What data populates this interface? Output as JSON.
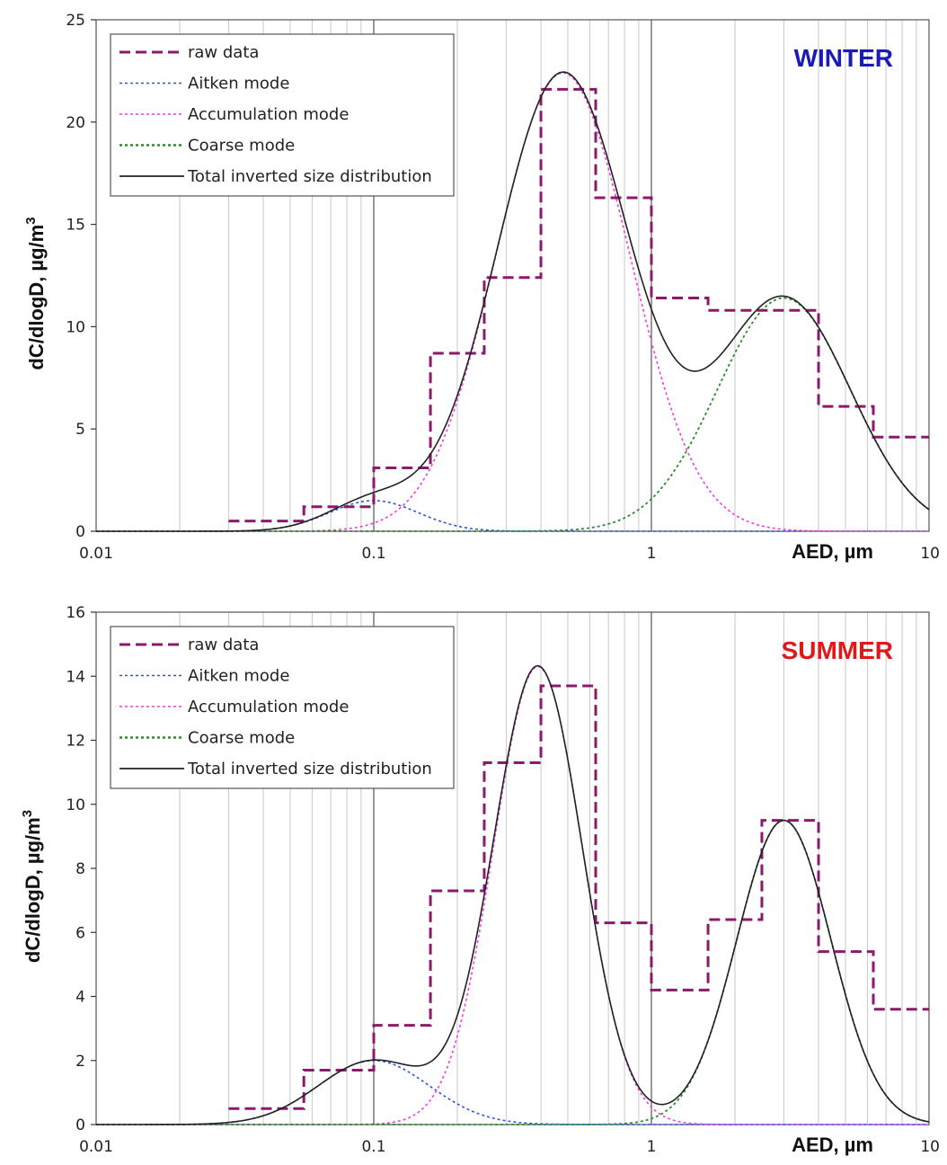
{
  "chart_data": [
    {
      "type": "line",
      "title": "",
      "season_label": "WINTER",
      "season_color": "#1a1ab8",
      "xlabel": "AED, µm",
      "ylabel": "dC/dlogD, µg/m",
      "ylabel_sup": "3",
      "x_scale": "log",
      "xlim": [
        0.01,
        10
      ],
      "ylim": [
        0,
        25
      ],
      "xticks": [
        0.01,
        0.1,
        1,
        10
      ],
      "xtick_labels": [
        "0.01",
        "0.1",
        "1",
        "10"
      ],
      "yticks": [
        0,
        5,
        10,
        15,
        20,
        25
      ],
      "ytick_labels": [
        "0",
        "5",
        "10",
        "15",
        "20",
        "25"
      ],
      "grid": "vertical log gridlines",
      "legend_position": "top-left",
      "legend": [
        "raw data",
        "Aitken mode",
        "Accumulation mode",
        "Coarse mode",
        "Total inverted size distribution"
      ],
      "raw_data": {
        "edges": [
          0.03,
          0.056,
          0.1,
          0.16,
          0.25,
          0.4,
          0.63,
          1.0,
          1.6,
          2.5,
          4.0,
          6.3,
          10
        ],
        "values": [
          0.5,
          1.2,
          3.1,
          8.7,
          12.4,
          21.6,
          16.3,
          11.4,
          10.8,
          10.8,
          6.1,
          4.6
        ]
      },
      "modes": {
        "aitken": {
          "amp": 1.5,
          "center": 0.1,
          "sigma_log10": 0.16
        },
        "accumulation": {
          "amp": 22.4,
          "center": 0.48,
          "sigma_log10": 0.24
        },
        "coarse": {
          "amp": 11.4,
          "center": 3.0,
          "sigma_log10": 0.24
        }
      },
      "series_colors": {
        "raw data": "#8b1a6b",
        "Aitken mode": "#2a55e0",
        "Accumulation mode": "#ee3fe0",
        "Coarse mode": "#2e8b2e",
        "Total inverted size distribution": "#222222"
      }
    },
    {
      "type": "line",
      "title": "",
      "season_label": "SUMMER",
      "season_color": "#e01818",
      "xlabel": "AED, µm",
      "ylabel": "dC/dlogD, µg/m",
      "ylabel_sup": "3",
      "x_scale": "log",
      "xlim": [
        0.01,
        10
      ],
      "ylim": [
        0,
        16
      ],
      "xticks": [
        0.01,
        0.1,
        1,
        10
      ],
      "xtick_labels": [
        "0.01",
        "0.1",
        "1",
        "10"
      ],
      "yticks": [
        0,
        2,
        4,
        6,
        8,
        10,
        12,
        14,
        16
      ],
      "ytick_labels": [
        "0",
        "2",
        "4",
        "6",
        "8",
        "10",
        "12",
        "14",
        "16"
      ],
      "grid": "vertical log gridlines",
      "legend_position": "top-left",
      "legend": [
        "raw data",
        "Aitken mode",
        "Accumulation mode",
        "Coarse mode",
        "Total inverted size distribution"
      ],
      "raw_data": {
        "edges": [
          0.03,
          0.056,
          0.1,
          0.16,
          0.25,
          0.4,
          0.63,
          1.0,
          1.6,
          2.5,
          4.0,
          6.3,
          10
        ],
        "values": [
          0.5,
          1.7,
          3.1,
          7.3,
          11.3,
          13.7,
          6.3,
          4.2,
          6.4,
          9.5,
          5.4,
          3.6
        ]
      },
      "modes": {
        "aitken": {
          "amp": 2.0,
          "center": 0.1,
          "sigma_log10": 0.2
        },
        "accumulation": {
          "amp": 14.3,
          "center": 0.39,
          "sigma_log10": 0.16
        },
        "coarse": {
          "amp": 9.5,
          "center": 3.0,
          "sigma_log10": 0.17
        }
      },
      "series_colors": {
        "raw data": "#8b1a6b",
        "Aitken mode": "#2a55e0",
        "Accumulation mode": "#ee3fe0",
        "Coarse mode": "#2e8b2e",
        "Total inverted size distribution": "#222222"
      }
    }
  ]
}
